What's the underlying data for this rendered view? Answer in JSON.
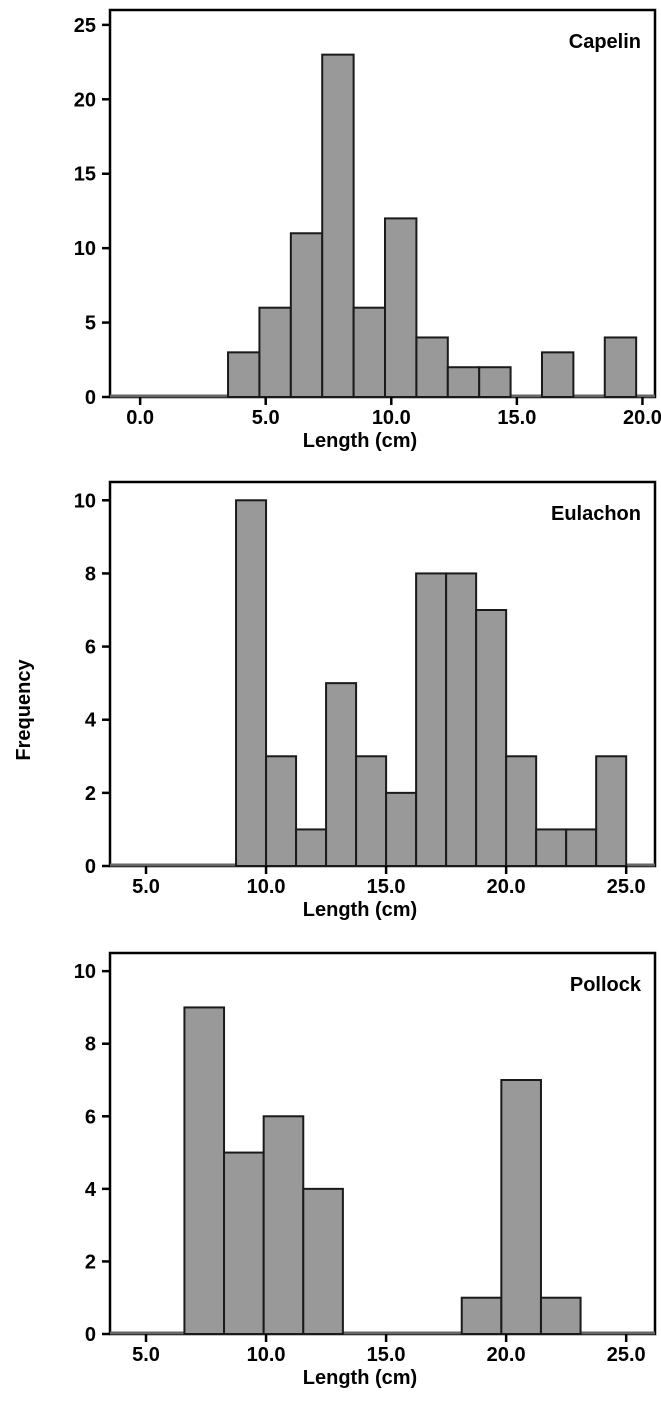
{
  "y_axis_label": "Frequency",
  "chart_data": [
    {
      "type": "bar",
      "label": "Capelin",
      "xlabel": "Length (cm)",
      "xlim": [
        -1.2,
        20.5
      ],
      "ylim": [
        0,
        26
      ],
      "xticks": [
        0.0,
        5.0,
        10.0,
        15.0,
        20.0
      ],
      "xtick_labels": [
        "0.0",
        "5.0",
        "10.0",
        "15.0",
        "20.0"
      ],
      "yticks": [
        0,
        5,
        10,
        15,
        20,
        25
      ],
      "ytick_labels": [
        "0",
        "5",
        "10",
        "15",
        "20",
        "25"
      ],
      "bin_width": 1.25,
      "bin_starts": [
        3.5,
        4.75,
        6.0,
        7.25,
        8.5,
        9.75,
        11.0,
        12.25,
        13.5,
        14.75,
        16.0,
        17.25,
        18.5
      ],
      "values": [
        3,
        6,
        11,
        23,
        6,
        12,
        4,
        2,
        2,
        0,
        3,
        0,
        4
      ]
    },
    {
      "type": "bar",
      "label": "Eulachon",
      "xlabel": "Length (cm)",
      "xlim": [
        3.5,
        26.2
      ],
      "ylim": [
        0,
        10.5
      ],
      "xticks": [
        5.0,
        10.0,
        15.0,
        20.0,
        25.0
      ],
      "xtick_labels": [
        "5.0",
        "10.0",
        "15.0",
        "20.0",
        "25.0"
      ],
      "yticks": [
        0,
        2,
        4,
        6,
        8,
        10
      ],
      "ytick_labels": [
        "0",
        "2",
        "4",
        "6",
        "8",
        "10"
      ],
      "bin_width": 1.25,
      "bin_starts": [
        8.75,
        10.0,
        11.25,
        12.5,
        13.75,
        15.0,
        16.25,
        17.5,
        18.75,
        20.0,
        21.25,
        22.5,
        23.75
      ],
      "values": [
        10,
        3,
        1,
        5,
        3,
        2,
        8,
        8,
        7,
        3,
        1,
        1,
        3
      ]
    },
    {
      "type": "bar",
      "label": "Pollock",
      "xlabel": "Length (cm)",
      "xlim": [
        3.5,
        26.2
      ],
      "ylim": [
        0,
        10.5
      ],
      "xticks": [
        5.0,
        10.0,
        15.0,
        20.0,
        25.0
      ],
      "xtick_labels": [
        "5.0",
        "10.0",
        "15.0",
        "20.0",
        "25.0"
      ],
      "yticks": [
        0,
        2,
        4,
        6,
        8,
        10
      ],
      "ytick_labels": [
        "0",
        "2",
        "4",
        "6",
        "8",
        "10"
      ],
      "bin_width": 1.65,
      "bin_starts": [
        6.6,
        8.25,
        9.9,
        11.55,
        13.2,
        14.85,
        16.5,
        18.15,
        19.8,
        21.45
      ],
      "values": [
        9,
        5,
        6,
        4,
        0,
        0,
        0,
        1,
        7,
        1
      ]
    }
  ]
}
